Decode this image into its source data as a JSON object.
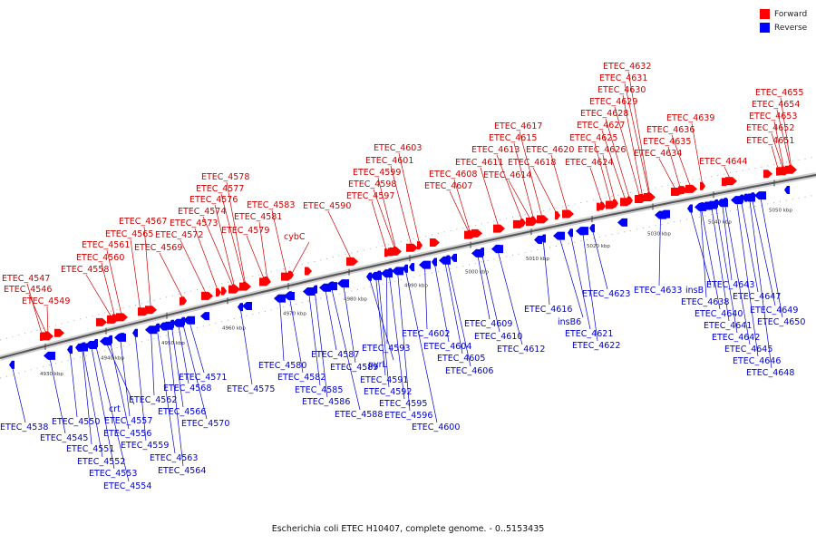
{
  "colors": {
    "forward": "#ff0000",
    "reverse": "#0000ff",
    "backbone": "#888888",
    "forward_label": "#cc0000",
    "reverse_label": "#0000cc"
  },
  "legend": [
    {
      "label": "Forward",
      "color": "#ff0000"
    },
    {
      "label": "Reverse",
      "color": "#0000ff"
    }
  ],
  "caption": "Escherichia coli ETEC H10407, complete genome. - 0..5153435",
  "ticks": [
    "4930 kbp",
    "4940 kbp",
    "4950 kbp",
    "4960 kbp",
    "4970 kbp",
    "4980 kbp",
    "4990 kbp",
    "5000 kbp",
    "5010 kbp",
    "5020 kbp",
    "5030 kbp",
    "5040 kbp",
    "5050 kbp"
  ],
  "forward_genes": [
    "ETEC_4547",
    "ETEC_4546",
    "ETEC_4549",
    "ETEC_4558",
    "ETEC_4560",
    "ETEC_4561",
    "ETEC_4565",
    "ETEC_4567",
    "ETEC_4569",
    "ETEC_4572",
    "ETEC_4573",
    "ETEC_4574",
    "ETEC_4576",
    "ETEC_4577",
    "ETEC_4578",
    "ETEC_4579",
    "ETEC_4581",
    "ETEC_4583",
    "cybC",
    "ETEC_4590",
    "ETEC_4597",
    "ETEC_4598",
    "ETEC_4599",
    "ETEC_4601",
    "ETEC_4603",
    "ETEC_4607",
    "ETEC_4608",
    "ETEC_4611",
    "ETEC_4613",
    "ETEC_4614",
    "ETEC_4615",
    "ETEC_4617",
    "ETEC_4618",
    "ETEC_4620",
    "ETEC_4624",
    "ETEC_4625",
    "ETEC_4626",
    "ETEC_4627",
    "ETEC_4628",
    "ETEC_4629",
    "ETEC_4630",
    "ETEC_4631",
    "ETEC_4632",
    "ETEC_4634",
    "ETEC_4635",
    "ETEC_4636",
    "ETEC_4639",
    "ETEC_4644",
    "ETEC_4651",
    "ETEC_4652",
    "ETEC_4653",
    "ETEC_4654",
    "ETEC_4655"
  ],
  "reverse_genes": [
    "ETEC_4538",
    "ETEC_4545",
    "ETEC_4550",
    "ETEC_4551",
    "ETEC_4552",
    "ETEC_4553",
    "ETEC_4554",
    "crt",
    "ETEC_4556",
    "ETEC_4557",
    "ETEC_4559",
    "ETEC_4562",
    "ETEC_4563",
    "ETEC_4564",
    "ETEC_4566",
    "ETEC_4568",
    "ETEC_4570",
    "ETEC_4571",
    "ETEC_4575",
    "ETEC_4580",
    "ETEC_4582",
    "ETEC_4585",
    "ETEC_4586",
    "ETEC_4587",
    "ETEC_4588",
    "ETEC_4589",
    "pyrL",
    "ETEC_4591",
    "ETEC_4592",
    "ETEC_4593",
    "ETEC_4595",
    "ETEC_4596",
    "ETEC_4600",
    "ETEC_4602",
    "ETEC_4604",
    "ETEC_4605",
    "ETEC_4606",
    "ETEC_4609",
    "ETEC_4610",
    "ETEC_4612",
    "ETEC_4616",
    "insB6",
    "ETEC_4621",
    "ETEC_4622",
    "ETEC_4623",
    "ETEC_4633",
    "insB",
    "ETEC_4638",
    "ETEC_4640",
    "ETEC_4641",
    "ETEC_4642",
    "ETEC_4643",
    "ETEC_4645",
    "ETEC_4646",
    "ETEC_4647",
    "ETEC_4648",
    "ETEC_4649",
    "ETEC_4650"
  ]
}
